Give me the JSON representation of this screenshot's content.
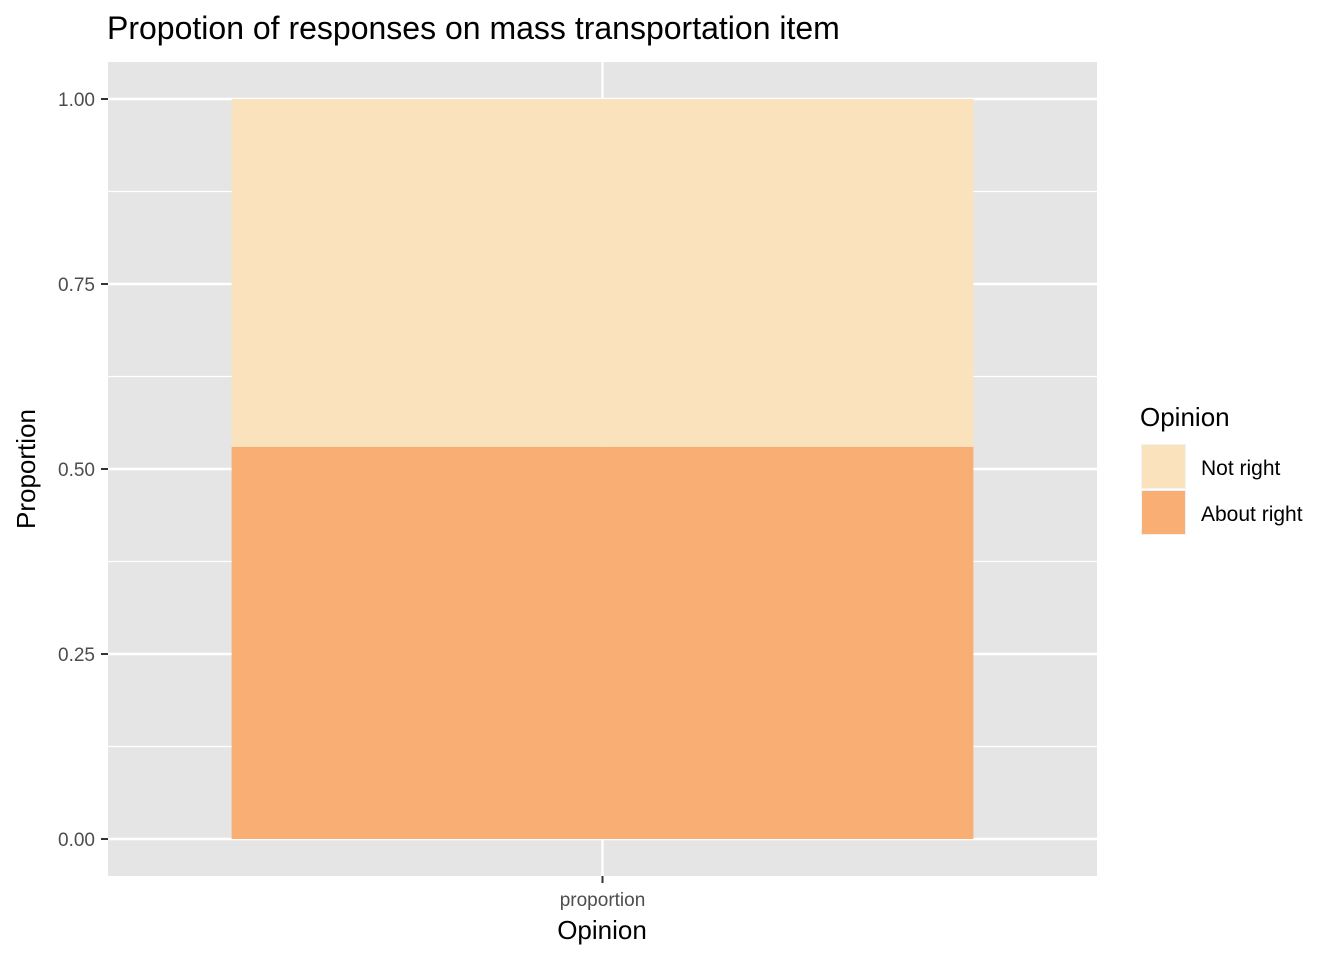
{
  "chart_data": {
    "type": "bar",
    "stacked": true,
    "title": "Propotion of responses on mass transportation item",
    "xlabel": "Opinion",
    "ylabel": "Proportion",
    "categories": [
      "proportion"
    ],
    "ylim": [
      -0.05,
      1.05
    ],
    "yticks": [
      0.0,
      0.25,
      0.5,
      0.75,
      1.0
    ],
    "ytick_labels": [
      "0.00",
      "0.25",
      "0.50",
      "0.75",
      "1.00"
    ],
    "series": [
      {
        "name": "About right",
        "values": [
          0.53
        ],
        "color": "#F9AE74"
      },
      {
        "name": "Not right",
        "values": [
          0.47
        ],
        "color": "#FAE2BC"
      }
    ],
    "legend": {
      "title": "Opinion",
      "position": "right",
      "entries": [
        "Not right",
        "About right"
      ]
    },
    "grid": true,
    "panel_background": "#E5E5E5"
  }
}
